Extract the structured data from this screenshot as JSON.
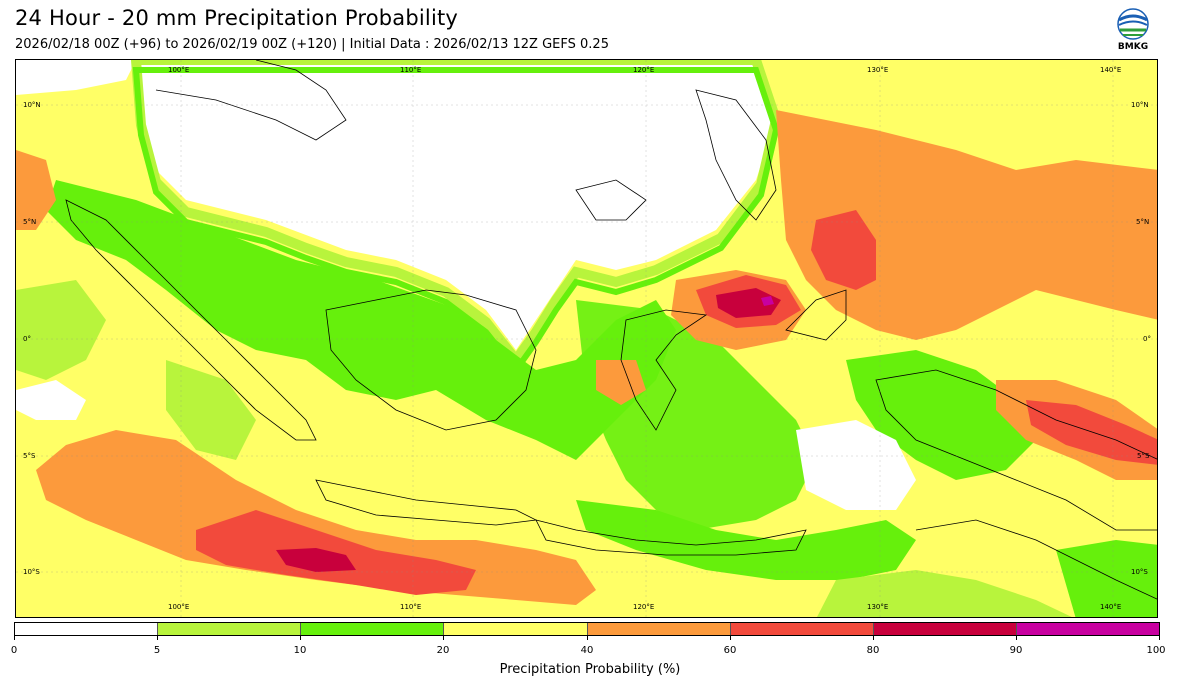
{
  "header": {
    "title": "24 Hour - 20 mm Precipitation Probability",
    "subtitle": "2026/02/18 00Z (+96) to 2026/02/19 00Z (+120) | Initial Data : 2026/02/13 12Z GEFS 0.25"
  },
  "logo": {
    "text": "BMKG"
  },
  "map": {
    "lon_labels_top": [
      "100°E",
      "110°E",
      "120°E",
      "130°E",
      "140°E"
    ],
    "lon_labels_bottom": [
      "100°E",
      "110°E",
      "120°E",
      "130°E",
      "140°E"
    ],
    "lat_labels_left": [
      "10°N",
      "5°N",
      "0°",
      "5°S",
      "10°S"
    ],
    "lat_labels_right": [
      "10°N",
      "5°N",
      "0°",
      "5°S",
      "10°S"
    ]
  },
  "colorbar": {
    "label": "Precipitation Probability (%)",
    "ticks": [
      "0",
      "5",
      "10",
      "20",
      "40",
      "60",
      "80",
      "90",
      "100"
    ],
    "colors": [
      "#ffffff",
      "#b8f43c",
      "#66f00c",
      "#ffff66",
      "#fc9a3c",
      "#f24a3c",
      "#c8003c",
      "#c800a0"
    ]
  }
}
